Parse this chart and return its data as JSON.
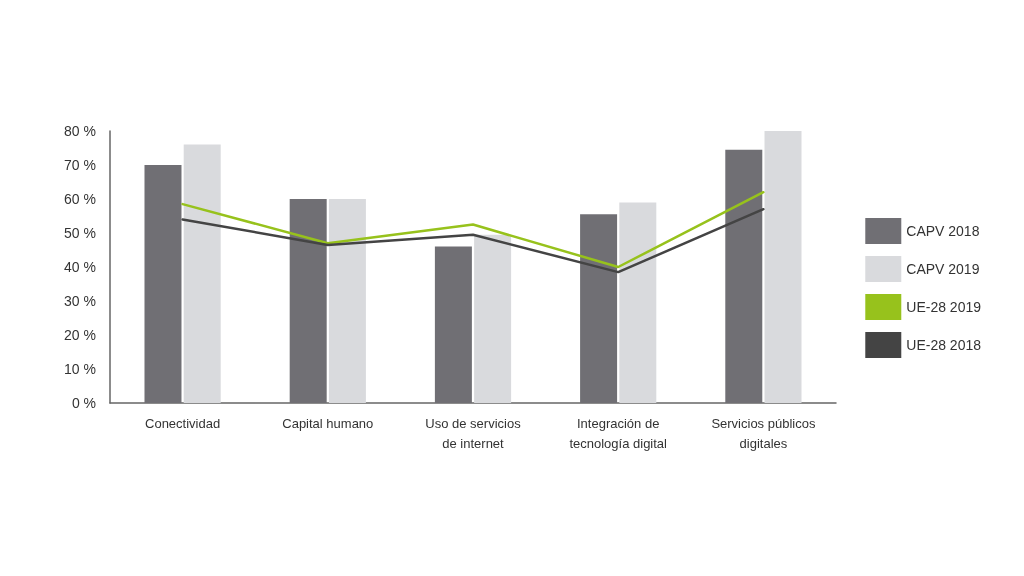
{
  "chart_data": {
    "type": "bar",
    "categories": [
      "Conectividad",
      "Capital humano",
      "Uso de servicios\nde internet",
      "Integración de\ntecnología digital",
      "Servicios públicos\ndigitales"
    ],
    "series": [
      {
        "name": "CAPV 2018",
        "color": "#706f74",
        "values": [
          70,
          60,
          46,
          55.5,
          74.5
        ]
      },
      {
        "name": "CAPV 2019",
        "color": "#d9dadd",
        "values": [
          76,
          60,
          49.5,
          59,
          80
        ]
      },
      {
        "name": "UE-28 2019",
        "type": "line",
        "color": "#97c21c",
        "values": [
          58.5,
          47,
          52.5,
          40,
          62
        ]
      },
      {
        "name": "UE-28 2018",
        "type": "line",
        "color": "#444444",
        "values": [
          54,
          46.5,
          49.5,
          38.5,
          57
        ]
      }
    ],
    "ylim": [
      0,
      80
    ],
    "yticks": [
      {
        "value": 0,
        "label": "0 %"
      },
      {
        "value": 10,
        "label": "10 %"
      },
      {
        "value": 20,
        "label": "20 %"
      },
      {
        "value": 30,
        "label": "30 %"
      },
      {
        "value": 40,
        "label": "40 %"
      },
      {
        "value": 50,
        "label": "50 %"
      },
      {
        "value": 60,
        "label": "60 %"
      },
      {
        "value": 70,
        "label": "70 %"
      },
      {
        "value": 80,
        "label": "80 %"
      }
    ],
    "grid": false,
    "legend": "right",
    "marker": "none",
    "line_style": "solid"
  }
}
